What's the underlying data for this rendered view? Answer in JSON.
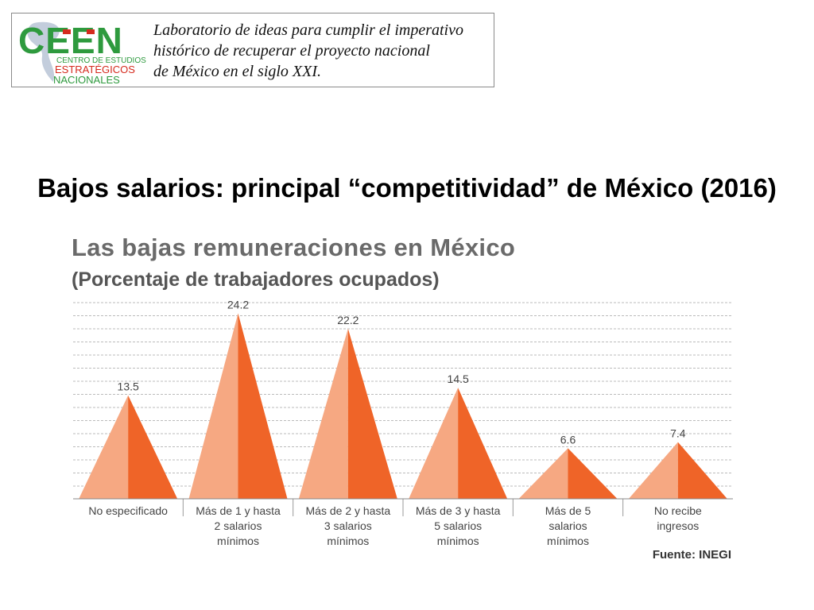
{
  "header": {
    "logo_text": "CEEN",
    "logo_line1": "CENTRO DE ESTUDIOS",
    "logo_line2": "ESTRATÉGICOS",
    "logo_line3": "NACIONALES",
    "tagline": [
      "Laboratorio de ideas para cumplir el imperativo",
      "histórico de recuperar el proyecto nacional",
      "de México en el siglo XXI."
    ]
  },
  "slide_title": "Bajos salarios: principal “competitividad” de México (2016)",
  "colors": {
    "light": "#f6a882",
    "dark": "#ef6428",
    "grid": "#bbbbbb",
    "logo_green": "#2e9a3e",
    "logo_red": "#d52b1e"
  },
  "chart_data": {
    "type": "bar",
    "title": "Las bajas remuneraciones en México",
    "subtitle": "(Porcentaje de trabajadores ocupados)",
    "categories": [
      [
        "No especificado"
      ],
      [
        "Más de 1 y hasta",
        "2 salarios",
        "mínimos"
      ],
      [
        "Más de 2 y hasta",
        "3 salarios",
        "mínimos"
      ],
      [
        "Más de 3 y hasta",
        "5 salarios",
        "mínimos"
      ],
      [
        "Más de 5",
        "salarios",
        "mínimos"
      ],
      [
        "No recibe",
        "ingresos"
      ]
    ],
    "values": [
      13.5,
      24.2,
      22.2,
      14.5,
      6.6,
      7.4
    ],
    "value_labels": [
      "13.5",
      "24.2",
      "22.2",
      "14.5",
      "6.6",
      "7.4"
    ],
    "ylim": [
      0,
      25.6
    ],
    "grid": true,
    "source": "Fuente: INEGI"
  }
}
